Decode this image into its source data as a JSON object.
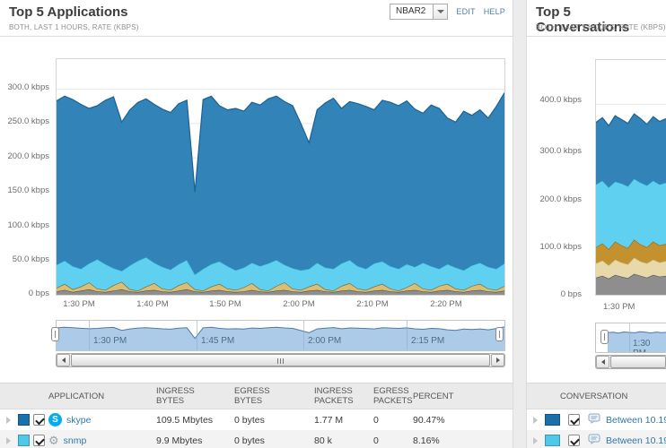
{
  "left": {
    "title": "Top 5 Applications",
    "subtitle": "BOTH, LAST 1 HOURS, RATE (KBPS)",
    "dropdown_value": "NBAR2",
    "edit_label": "EDIT",
    "help_label": "HELP",
    "y_ticks": [
      "300.0 kbps",
      "250.0 kbps",
      "200.0 kbps",
      "150.0 kbps",
      "100.0 kbps",
      "50.0 kbps",
      "0 bps"
    ],
    "x_ticks": [
      "1:30 PM",
      "1:40 PM",
      "1:50 PM",
      "2:00 PM",
      "2:10 PM",
      "2:20 PM"
    ],
    "scrubber_ticks": [
      "1:30 PM",
      "1:45 PM",
      "2:00 PM",
      "2:15 PM"
    ],
    "table": {
      "headers": [
        "APPLICATION",
        "INGRESS BYTES",
        "EGRESS BYTES",
        "INGRESS PACKETS",
        "EGRESS PACKETS",
        "PERCENT"
      ],
      "rows": [
        {
          "name": "skype",
          "swatch": "#1B6FAD",
          "ingress_bytes": "109.5 Mbytes",
          "egress_bytes": "0 bytes",
          "ingress_packets": "1.77 M",
          "egress_packets": "0",
          "percent": "90.47%"
        },
        {
          "name": "snmp",
          "swatch": "#4FC9E9",
          "ingress_bytes": "9.9 Mbytes",
          "egress_bytes": "0 bytes",
          "ingress_packets": "80 k",
          "egress_packets": "0",
          "percent": "8.16%"
        }
      ]
    }
  },
  "right": {
    "title": "Top 5 Conversations",
    "subtitle": "BOTH, LAST 1 HOURS, RATE (KBPS)",
    "y_ticks": [
      "400.0 kbps",
      "300.0 kbps",
      "200.0 kbps",
      "100.0 kbps",
      "0 bps"
    ],
    "x_ticks": [
      "1:30 PM"
    ],
    "scrubber_ticks": [
      "1:30 PM"
    ],
    "table": {
      "headers": [
        "CONVERSATION"
      ],
      "rows": [
        {
          "name": "Between 10.19",
          "swatch": "#1B6FAD"
        },
        {
          "name": "Between 10.19",
          "swatch": "#4FC9E9"
        }
      ]
    }
  },
  "chart_data": [
    {
      "type": "area",
      "stacked": true,
      "title": "Top 5 Applications",
      "ylabel": "rate (kbps)",
      "ylim": [
        0,
        344
      ],
      "gridlines": [
        50,
        100,
        150,
        200,
        250,
        300
      ],
      "x_range": [
        "1:27 PM",
        "2:28 PM"
      ],
      "x_tick_labels": [
        "1:30 PM",
        "1:40 PM",
        "1:50 PM",
        "2:00 PM",
        "2:10 PM",
        "2:20 PM"
      ],
      "legend_position": "table-below",
      "series": [
        {
          "name": "unlabeled-gray",
          "color": "#8E8E8E",
          "stroke": "#4F4F4F",
          "tops": [
            5,
            7,
            4,
            6,
            8,
            5,
            4,
            6,
            8,
            5,
            4,
            6,
            7,
            5,
            4,
            6,
            8,
            5,
            4,
            6,
            7,
            5,
            4,
            5,
            7,
            5,
            4,
            6,
            7,
            5,
            4,
            6,
            7,
            5,
            4,
            6,
            7,
            5,
            4,
            6,
            7,
            5,
            4,
            6,
            7,
            5,
            4,
            6,
            7,
            5,
            4,
            6,
            7,
            5,
            4,
            6
          ]
        },
        {
          "name": "unlabeled-tan",
          "color": "#D9BE74",
          "stroke": "#746032",
          "tops": [
            10,
            16,
            8,
            12,
            18,
            9,
            7,
            14,
            19,
            8,
            6,
            12,
            17,
            9,
            7,
            14,
            18,
            8,
            6,
            12,
            16,
            9,
            7,
            11,
            17,
            8,
            6,
            13,
            18,
            9,
            7,
            12,
            16,
            8,
            6,
            13,
            17,
            9,
            7,
            12,
            16,
            9,
            6,
            11,
            17,
            9,
            7,
            13,
            16,
            9,
            7,
            13,
            16,
            9,
            7,
            13
          ]
        },
        {
          "name": "snmp",
          "color": "#5FD0EF",
          "stroke": "#2BA3C9",
          "tops": [
            44,
            50,
            42,
            38,
            46,
            52,
            45,
            39,
            35,
            43,
            50,
            55,
            47,
            41,
            37,
            45,
            51,
            30,
            38,
            45,
            49,
            42,
            36,
            40,
            47,
            42,
            46,
            51,
            44,
            39,
            36,
            38,
            47,
            40,
            38,
            46,
            51,
            42,
            38,
            46,
            49,
            42,
            38,
            45,
            41,
            47,
            42,
            38,
            45,
            40,
            36,
            43,
            47,
            41,
            38,
            46
          ]
        },
        {
          "name": "skype",
          "color": "#3283B7",
          "stroke": "#1D6191",
          "tops": [
            283,
            290,
            285,
            278,
            272,
            276,
            284,
            289,
            252,
            270,
            281,
            286,
            278,
            271,
            266,
            279,
            284,
            150,
            285,
            290,
            276,
            270,
            272,
            268,
            281,
            277,
            286,
            290,
            282,
            276,
            250,
            222,
            270,
            280,
            287,
            272,
            282,
            279,
            275,
            270,
            284,
            281,
            276,
            283,
            271,
            265,
            277,
            272,
            258,
            252,
            268,
            262,
            270,
            258,
            275,
            295
          ]
        }
      ]
    },
    {
      "type": "area",
      "stacked": true,
      "title": "Top 5 Conversations",
      "ylabel": "rate (kbps)",
      "ylim": [
        0,
        493
      ],
      "gridlines": [
        100,
        200,
        300,
        400
      ],
      "x_range": [
        "1:27 PM",
        "1:34 PM (cropped)"
      ],
      "x_tick_labels": [
        "1:30 PM"
      ],
      "legend_position": "table-below",
      "series": [
        {
          "name": "conversation-5-gray",
          "color": "#8E8E8E",
          "stroke": "#4F4F4F",
          "tops": [
            36,
            40,
            34,
            42,
            38,
            35,
            44,
            40,
            36,
            42,
            38,
            40
          ]
        },
        {
          "name": "conversation-4-tan",
          "color": "#E7D9A9",
          "stroke": "#C9B97E",
          "tops": [
            66,
            72,
            62,
            74,
            68,
            64,
            78,
            70,
            66,
            74,
            68,
            71
          ]
        },
        {
          "name": "conversation-3-gold",
          "color": "#C3922E",
          "stroke": "#8A6A1E",
          "tops": [
            100,
            108,
            96,
            112,
            104,
            98,
            116,
            106,
            100,
            112,
            104,
            107
          ]
        },
        {
          "name": "between-10.19-b",
          "color": "#5FD0EF",
          "stroke": "#2BA3C9",
          "tops": [
            232,
            240,
            226,
            238,
            234,
            228,
            244,
            236,
            230,
            240,
            232,
            236
          ]
        },
        {
          "name": "between-10.19-a",
          "color": "#3283B7",
          "stroke": "#1D6191",
          "tops": [
            362,
            372,
            355,
            376,
            368,
            360,
            380,
            370,
            358,
            374,
            364,
            370
          ]
        }
      ]
    }
  ]
}
